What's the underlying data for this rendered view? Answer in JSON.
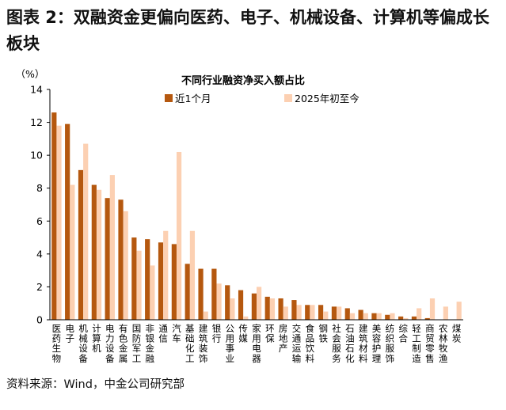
{
  "figure_title": "图表 2：双融资金更偏向医药、电子、机械设备、计算机等偏成长板块",
  "source": "资料来源：Wind，中金公司研究部",
  "colors": {
    "series1": "#b5580f",
    "series2": "#fcd0b2",
    "axis": "#000000"
  },
  "chart_data": {
    "type": "bar",
    "title": "不同行业融资净买入额占比",
    "ylabel": "（%）",
    "xlabel": "",
    "ylim": [
      0,
      14
    ],
    "yticks": [
      0,
      2,
      4,
      6,
      8,
      10,
      12,
      14
    ],
    "grid": false,
    "legend_position": "top",
    "categories": [
      "医药生物",
      "电子",
      "机械设备",
      "计算机",
      "电力设备",
      "有色金属",
      "国防军工",
      "非银金融",
      "通信",
      "汽车",
      "基础化工",
      "建筑装饰",
      "银行",
      "公用事业",
      "传媒",
      "家用电器",
      "环保",
      "房地产",
      "交通运输",
      "食品饮料",
      "钢铁",
      "社会服务",
      "石油石化",
      "建筑材料",
      "美容护理",
      "纺织服饰",
      "综合",
      "轻工制造",
      "商贸零售",
      "农林牧渔",
      "煤炭"
    ],
    "series": [
      {
        "name": "近1个月",
        "values": [
          12.6,
          11.9,
          9.1,
          8.2,
          7.4,
          7.3,
          5.0,
          4.9,
          4.7,
          4.6,
          3.4,
          3.1,
          3.1,
          2.1,
          1.8,
          1.6,
          1.4,
          1.3,
          1.2,
          0.9,
          0.9,
          0.8,
          0.7,
          0.6,
          0.4,
          0.3,
          0.2,
          0.2,
          0.1,
          0.0,
          0.0
        ]
      },
      {
        "name": "2025年初至今",
        "values": [
          11.8,
          8.2,
          10.7,
          7.9,
          8.8,
          6.6,
          4.2,
          3.3,
          5.4,
          10.2,
          5.4,
          0.5,
          2.2,
          1.3,
          0.2,
          2.0,
          1.3,
          0.8,
          0.9,
          0.9,
          0.5,
          0.8,
          0.4,
          0.4,
          0.4,
          0.4,
          0.1,
          0.7,
          1.3,
          0.8,
          1.1
        ]
      }
    ]
  }
}
